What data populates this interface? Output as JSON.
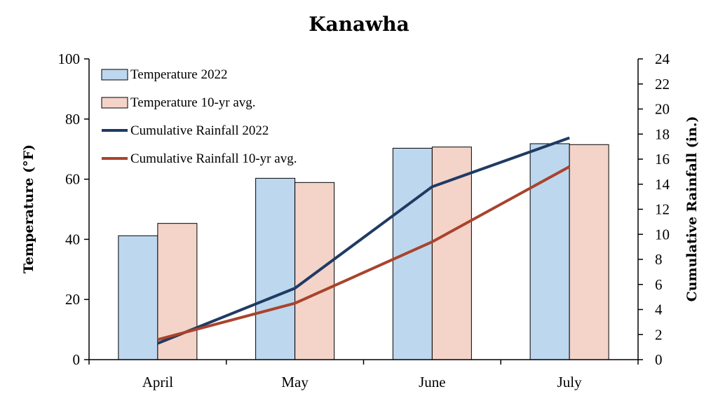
{
  "chart_data": {
    "type": "bar",
    "title": "Kanawha",
    "categories": [
      "April",
      "May",
      "June",
      "July"
    ],
    "y_left": {
      "label": "Temperature (°F)",
      "range": [
        0,
        100
      ],
      "ticks": [
        0,
        20,
        40,
        60,
        80,
        100
      ]
    },
    "y_right": {
      "label": "Cumulative Rainfall (in.)",
      "range": [
        0,
        24
      ],
      "ticks": [
        0,
        2,
        4,
        6,
        8,
        10,
        12,
        14,
        16,
        18,
        20,
        22,
        24
      ]
    },
    "series": [
      {
        "name": "Temperature 2022",
        "kind": "bar",
        "axis": "left",
        "values": [
          41.2,
          60.3,
          70.3,
          71.8
        ],
        "color": "#bdd7ee"
      },
      {
        "name": "Temperature 10-yr avg.",
        "kind": "bar",
        "axis": "left",
        "values": [
          45.3,
          58.9,
          70.7,
          71.5
        ],
        "color": "#f4d3c9"
      },
      {
        "name": "Cumulative Rainfall 2022",
        "kind": "line",
        "axis": "right",
        "values": [
          1.3,
          5.7,
          13.8,
          17.7
        ],
        "color": "#1f3b63"
      },
      {
        "name": "Cumulative Rainfall 10-yr avg.",
        "kind": "line",
        "axis": "right",
        "values": [
          1.6,
          4.5,
          9.4,
          15.4
        ],
        "color": "#a9432c"
      }
    ],
    "legend_position": "top-left",
    "grid": false
  }
}
